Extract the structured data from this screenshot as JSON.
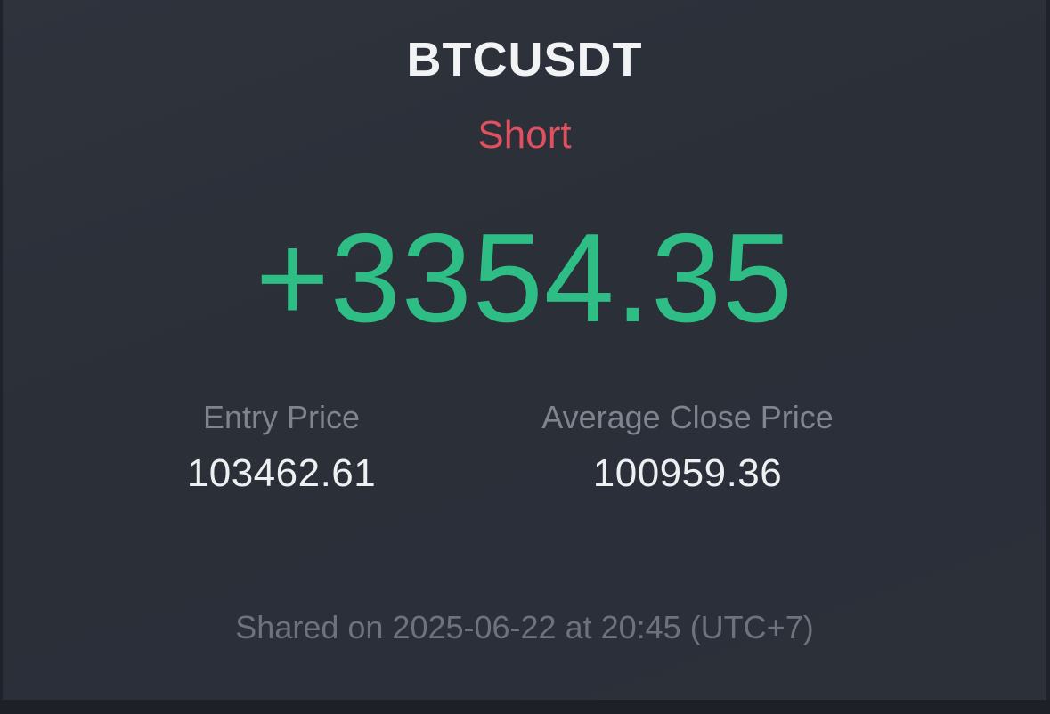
{
  "trade": {
    "symbol": "BTCUSDT",
    "side": "Short",
    "pnl": "+3354.35"
  },
  "stats": {
    "entry_label": "Entry Price",
    "entry_value": "103462.61",
    "close_label": "Average Close Price",
    "close_value": "100959.36"
  },
  "footer": {
    "shared_text": "Shared on 2025-06-22 at 20:45 (UTC+7)"
  },
  "colors": {
    "short": "#e0505f",
    "profit": "#2dbd85",
    "background": "#2c3039"
  }
}
